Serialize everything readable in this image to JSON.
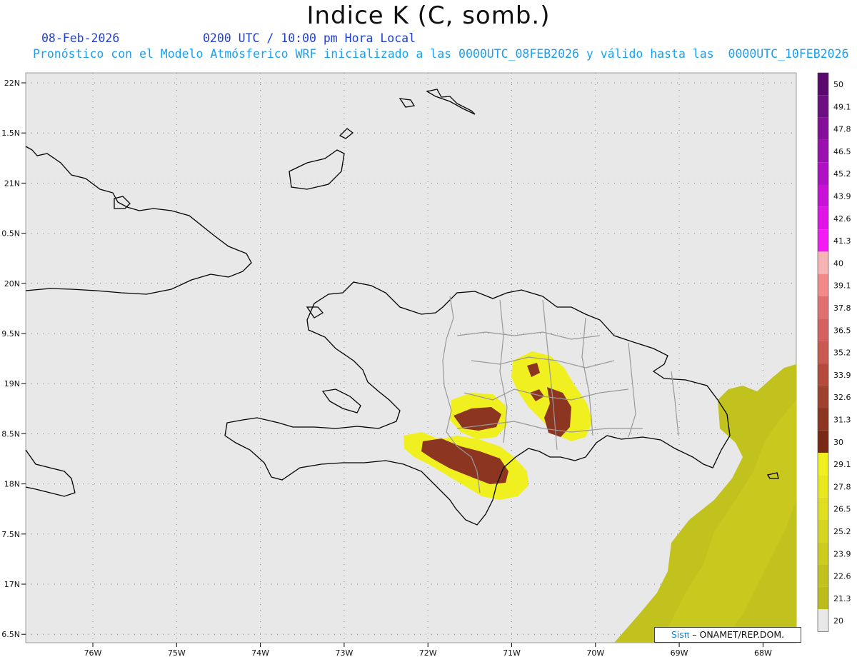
{
  "title": "Indice K (C, somb.)",
  "date": "08-Feb-2026",
  "time": "0200 UTC / 10:00 pm Hora Local",
  "forecast_line": "Pronóstico con el Modelo Atmósferico WRF inicializado a las 0000UTC_08FEB2026 y válido hasta las  0000UTC_10FEB2026",
  "credit": {
    "logo": "Sisπ",
    "text": " – ONAMET/REP.DOM."
  },
  "axes": {
    "lat_labels": [
      "22N",
      "1.5N",
      "21N",
      "0.5N",
      "20N",
      "9.5N",
      "19N",
      "8.5N",
      "18N",
      "7.5N",
      "17N",
      "6.5N"
    ],
    "lon_labels": [
      "76W",
      "75W",
      "74W",
      "73W",
      "72W",
      "71W",
      "70W",
      "69W",
      "68W"
    ]
  },
  "colorbar": {
    "labels": [
      "50",
      "49.1",
      "47.8",
      "46.5",
      "45.2",
      "43.9",
      "42.6",
      "41.3",
      "40",
      "39.1",
      "37.8",
      "36.5",
      "35.2",
      "33.9",
      "32.6",
      "31.3",
      "30",
      "29.1",
      "27.8",
      "26.5",
      "25.2",
      "23.9",
      "22.6",
      "21.3",
      "20"
    ],
    "colors": [
      "#5a0a6e",
      "#6d0f82",
      "#850f9a",
      "#9a10ae",
      "#b010c4",
      "#c810d6",
      "#df14e6",
      "#f21cf2",
      "#f6b4b4",
      "#f28a8a",
      "#e07070",
      "#d46060",
      "#c85a50",
      "#b44a3c",
      "#a0402e",
      "#8c3622",
      "#7a2a14",
      "#f0f020",
      "#e8e81e",
      "#dede22",
      "#d4d422",
      "#cbcb20",
      "#c2c21e",
      "#bcbc1c",
      "#e8e8e8"
    ]
  },
  "colors": {
    "map_bg": "#e8e8e8",
    "coast": "#000000",
    "borders": "#999999"
  }
}
